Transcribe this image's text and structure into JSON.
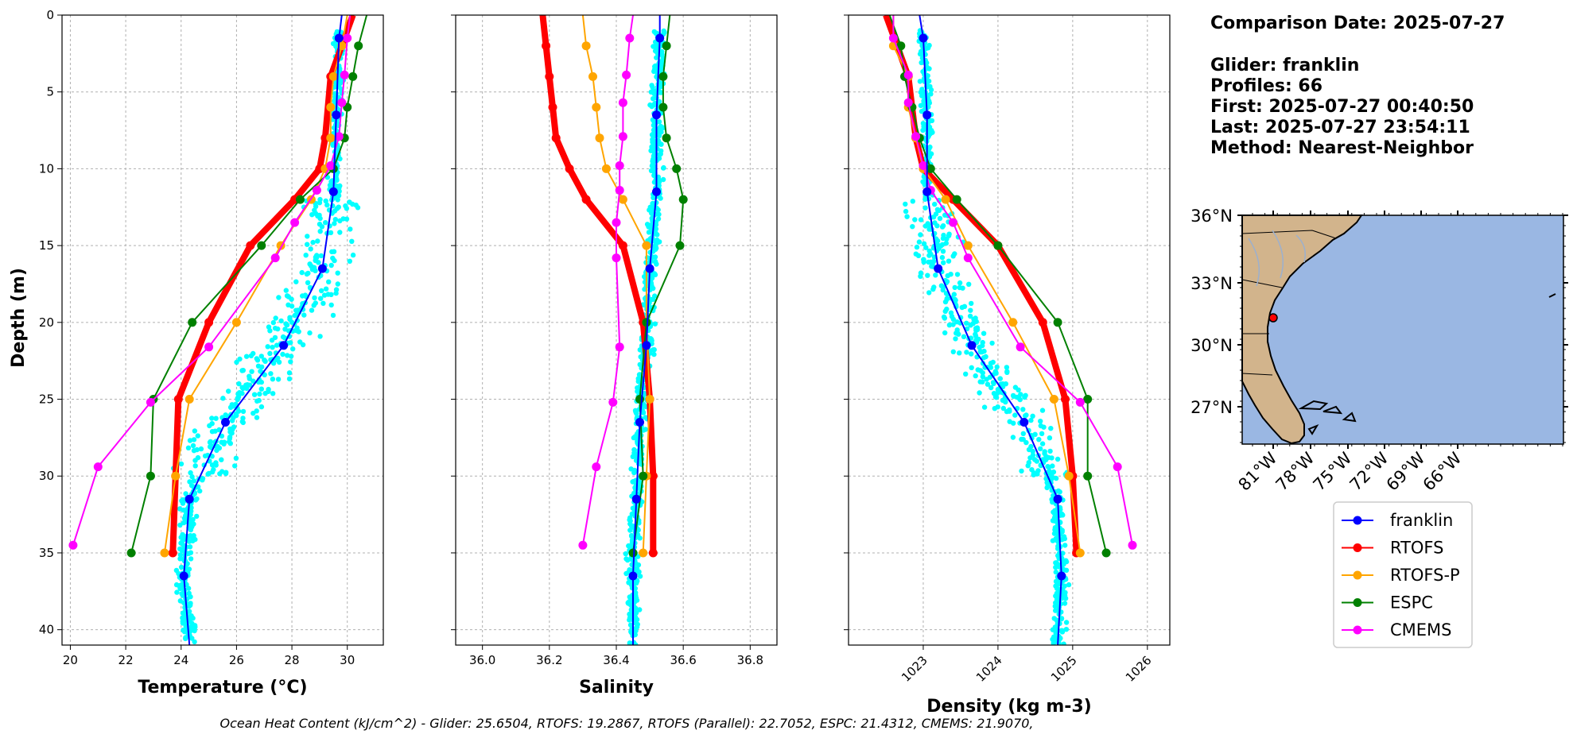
{
  "info": {
    "comparison_date": "Comparison Date: 2025-07-27",
    "glider": "Glider: franklin",
    "profiles": "Profiles: 66",
    "first": "First: 2025-07-27 00:40:50",
    "last": "Last: 2025-07-27 23:54:11",
    "method": "Method: Nearest-Neighbor"
  },
  "footer": "Ocean Heat Content (kJ/cm^2) - Glider: 25.6504,  RTOFS: 19.2867,  RTOFS (Parallel): 22.7052,  ESPC: 21.4312,  CMEMS: 21.9070,",
  "colors": {
    "franklin": "#0000ff",
    "RTOFS": "#ff0000",
    "RTOFS-P": "#ffa500",
    "ESPC": "#008000",
    "CMEMS": "#ff00ff",
    "obs": "#00ffff",
    "ocean": "#9ab7e3",
    "land": "#d2b48c"
  },
  "legend": [
    "franklin",
    "RTOFS",
    "RTOFS-P",
    "ESPC",
    "CMEMS"
  ],
  "map": {
    "lat_labels": [
      "36°N",
      "33°N",
      "30°N",
      "27°N"
    ],
    "lon_labels": [
      "81°W",
      "78°W",
      "75°W",
      "72°W",
      "69°W",
      "66°W"
    ],
    "glider_position": {
      "lon": -80.5,
      "lat": 31.3
    }
  },
  "chart_data": [
    {
      "type": "line",
      "xlabel": "Temperature (°C)",
      "ylabel": "Depth (m)",
      "xlim": [
        19.7,
        31.3
      ],
      "ylim": [
        41,
        0
      ],
      "xticks": [
        20,
        22,
        24,
        26,
        28,
        30
      ],
      "yticks": [
        0,
        5,
        10,
        15,
        20,
        25,
        30,
        35,
        40
      ],
      "grid": true,
      "series": [
        {
          "name": "RTOFS",
          "depth": [
            0,
            4,
            8,
            10,
            12,
            15,
            20,
            25,
            30,
            35
          ],
          "values": [
            30.2,
            29.4,
            29.2,
            29.0,
            28.1,
            26.5,
            25.0,
            23.9,
            23.8,
            23.7
          ]
        },
        {
          "name": "RTOFS-P",
          "depth": [
            0,
            2,
            4,
            6,
            8,
            10,
            12,
            15,
            20,
            25,
            30,
            35
          ],
          "values": [
            30.0,
            29.8,
            29.5,
            29.4,
            29.4,
            29.2,
            28.7,
            27.6,
            26.0,
            24.3,
            23.8,
            23.4
          ]
        },
        {
          "name": "ESPC",
          "depth": [
            0,
            2,
            4,
            6,
            8,
            10,
            12,
            15,
            20,
            25,
            30,
            35
          ],
          "values": [
            30.7,
            30.4,
            30.2,
            30.0,
            29.9,
            29.5,
            28.3,
            26.9,
            24.4,
            23.0,
            22.9,
            22.2
          ]
        },
        {
          "name": "CMEMS",
          "depth": [
            0,
            1.5,
            3.9,
            5.7,
            7.9,
            9.8,
            11.4,
            13.5,
            15.8,
            21.6,
            25.2,
            29.4,
            34.5
          ],
          "values": [
            30.1,
            30.0,
            29.9,
            29.8,
            29.7,
            29.4,
            28.9,
            28.1,
            27.4,
            25.0,
            22.9,
            21.0,
            20.1
          ]
        },
        {
          "name": "franklin",
          "depth": [
            0,
            1.5,
            6.5,
            11.5,
            16.5,
            21.5,
            26.5,
            31.5,
            36.5,
            41
          ],
          "values": [
            29.8,
            29.7,
            29.6,
            29.5,
            29.1,
            27.7,
            25.6,
            24.3,
            24.1,
            24.3
          ]
        }
      ]
    },
    {
      "type": "line",
      "xlabel": "Salinity",
      "xlim": [
        35.92,
        36.88
      ],
      "ylim": [
        41,
        0
      ],
      "xticks": [
        36.0,
        36.2,
        36.4,
        36.6,
        36.8
      ],
      "grid": true,
      "series": [
        {
          "name": "RTOFS",
          "depth": [
            0,
            2,
            4,
            6,
            8,
            10,
            12,
            15,
            20,
            25,
            30,
            35
          ],
          "values": [
            36.18,
            36.19,
            36.2,
            36.21,
            36.22,
            36.26,
            36.31,
            36.42,
            36.48,
            36.5,
            36.51,
            36.51
          ]
        },
        {
          "name": "RTOFS-P",
          "depth": [
            0,
            2,
            4,
            6,
            8,
            10,
            12,
            15,
            20,
            25,
            30,
            35
          ],
          "values": [
            36.3,
            36.31,
            36.33,
            36.34,
            36.35,
            36.37,
            36.42,
            36.49,
            36.49,
            36.5,
            36.49,
            36.48
          ]
        },
        {
          "name": "ESPC",
          "depth": [
            0,
            2,
            4,
            6,
            8,
            10,
            12,
            15,
            20,
            25,
            30,
            35
          ],
          "values": [
            36.56,
            36.55,
            36.54,
            36.54,
            36.55,
            36.58,
            36.6,
            36.59,
            36.49,
            36.47,
            36.48,
            36.45
          ]
        },
        {
          "name": "CMEMS",
          "depth": [
            0,
            1.5,
            3.9,
            5.7,
            7.9,
            9.8,
            11.4,
            13.5,
            15.8,
            21.6,
            25.2,
            29.4,
            34.5
          ],
          "values": [
            36.45,
            36.44,
            36.43,
            36.42,
            36.42,
            36.41,
            36.41,
            36.4,
            36.4,
            36.41,
            36.39,
            36.34,
            36.3
          ]
        },
        {
          "name": "franklin",
          "depth": [
            0,
            1.5,
            6.5,
            11.5,
            16.5,
            21.5,
            26.5,
            31.5,
            36.5,
            41
          ],
          "values": [
            36.53,
            36.53,
            36.52,
            36.52,
            36.5,
            36.49,
            36.47,
            36.46,
            36.45,
            36.45
          ]
        }
      ]
    },
    {
      "type": "line",
      "xlabel": "Density (kg m-3)",
      "xlim": [
        1022.0,
        1026.3
      ],
      "ylim": [
        41,
        0
      ],
      "xticks": [
        1023,
        1024,
        1025,
        1026
      ],
      "grid": true,
      "series": [
        {
          "name": "RTOFS",
          "depth": [
            0,
            4,
            8,
            10,
            12,
            15,
            20,
            25,
            30,
            35
          ],
          "values": [
            1022.5,
            1022.8,
            1022.9,
            1023.0,
            1023.4,
            1024.0,
            1024.6,
            1024.9,
            1025.0,
            1025.05
          ]
        },
        {
          "name": "RTOFS-P",
          "depth": [
            0,
            2,
            4,
            6,
            8,
            10,
            12,
            15,
            20,
            25,
            30,
            35
          ],
          "values": [
            1022.6,
            1022.6,
            1022.8,
            1022.8,
            1022.9,
            1023.0,
            1023.3,
            1023.6,
            1024.2,
            1024.75,
            1024.95,
            1025.1
          ]
        },
        {
          "name": "ESPC",
          "depth": [
            0,
            2,
            4,
            6,
            8,
            10,
            12,
            15,
            20,
            25,
            30,
            35
          ],
          "values": [
            1022.55,
            1022.7,
            1022.75,
            1022.85,
            1022.95,
            1023.1,
            1023.45,
            1024.0,
            1024.8,
            1025.2,
            1025.2,
            1025.45
          ]
        },
        {
          "name": "CMEMS",
          "depth": [
            0,
            1.5,
            3.9,
            5.7,
            7.9,
            9.8,
            11.4,
            13.5,
            15.8,
            21.6,
            25.2,
            29.4,
            34.5
          ],
          "values": [
            1022.6,
            1022.6,
            1022.8,
            1022.8,
            1022.9,
            1023.0,
            1023.1,
            1023.4,
            1023.6,
            1024.3,
            1025.1,
            1025.6,
            1025.8
          ]
        },
        {
          "name": "franklin",
          "depth": [
            0,
            1.5,
            6.5,
            11.5,
            16.5,
            21.5,
            26.5,
            31.5,
            36.5,
            41
          ],
          "values": [
            1022.95,
            1023.0,
            1023.05,
            1023.05,
            1023.2,
            1023.65,
            1024.35,
            1024.8,
            1024.85,
            1024.8
          ]
        }
      ]
    }
  ]
}
